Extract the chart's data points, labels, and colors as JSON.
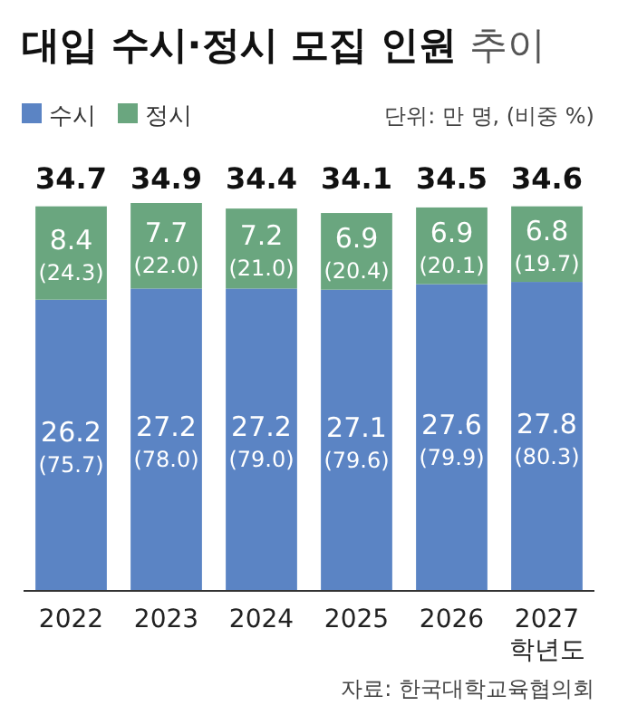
{
  "chart_data": {
    "type": "bar",
    "stacked": true,
    "title": "대입 수시·정시 모집 인원 추이",
    "categories": [
      "2022",
      "2023",
      "2024",
      "2025",
      "2026",
      "2027\n학년도"
    ],
    "series": [
      {
        "name": "수시",
        "color": "#5b84c4",
        "values": [
          26.2,
          27.2,
          27.2,
          27.1,
          27.6,
          27.8
        ],
        "value_labels": [
          "26.2\n(75.7)",
          "27.2\n(78.0)",
          "27.2\n(79.0)",
          "27.1\n(79.6)",
          "27.6\n(79.9)",
          "27.8\n(80.3)"
        ]
      },
      {
        "name": "정시",
        "color": "#6aa67f",
        "values": [
          8.4,
          7.7,
          7.2,
          6.9,
          6.9,
          6.8
        ],
        "value_labels": [
          "8.4\n(24.3)",
          "7.7\n(22.0)",
          "7.2\n(21.0)",
          "6.9\n(20.4)",
          "6.9\n(20.1)",
          "6.8\n(19.7)"
        ]
      }
    ],
    "totals": [
      "34.7",
      "34.9",
      "34.4",
      "34.1",
      "34.5",
      "34.6"
    ],
    "legend": "top left",
    "annotations": [
      "단위: 만 명, (비중 %)",
      "자료: 한국대학교육협의회"
    ]
  }
}
